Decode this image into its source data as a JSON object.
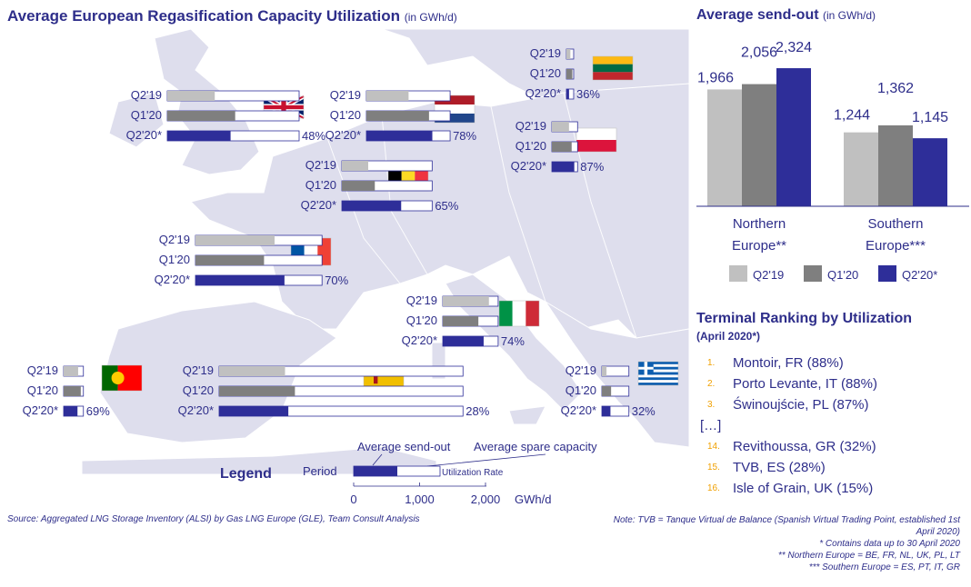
{
  "title": "Average European Regasification Capacity Utilization",
  "title_unit": "(in GWh/d)",
  "colors": {
    "q219": "#c0c0c0",
    "q120": "#7f7f7f",
    "q220": "#2e2e99",
    "map_land": "#dedeed",
    "map_water": "#ffffff",
    "text": "#2e2e8a"
  },
  "period_labels": [
    "Q2'19",
    "Q1'20",
    "Q2'20*"
  ],
  "countries": [
    {
      "name": "UK",
      "flag": "uk",
      "send": [
        720,
        1030,
        960
      ],
      "cap": 2000,
      "util_label": "48%"
    },
    {
      "name": "Netherlands",
      "flag": "nl",
      "send": [
        640,
        950,
        1000
      ],
      "cap": 1270,
      "util_label": "78%"
    },
    {
      "name": "Lithuania",
      "flag": "lt",
      "send": [
        60,
        90,
        40
      ],
      "cap": 110,
      "util_label": "36%"
    },
    {
      "name": "Poland",
      "flag": "pl",
      "send": [
        260,
        300,
        340
      ],
      "cap": 390,
      "util_label": "87%"
    },
    {
      "name": "Belgium",
      "flag": "be",
      "send": [
        400,
        500,
        900
      ],
      "cap": 1370,
      "util_label": "65%"
    },
    {
      "name": "France",
      "flag": "fr",
      "send": [
        1200,
        1040,
        1350
      ],
      "cap": 1920,
      "util_label": "70%"
    },
    {
      "name": "Italy",
      "flag": "it",
      "send": [
        700,
        540,
        620
      ],
      "cap": 840,
      "util_label": "74%"
    },
    {
      "name": "Portugal",
      "flag": "pt",
      "send": [
        220,
        260,
        210
      ],
      "cap": 300,
      "util_label": "69%"
    },
    {
      "name": "Spain",
      "flag": "es",
      "send": [
        1000,
        1150,
        1050
      ],
      "cap": 3700,
      "util_label": "28%"
    },
    {
      "name": "Greece",
      "flag": "gr",
      "send": [
        70,
        140,
        130
      ],
      "cap": 410,
      "util_label": "32%"
    }
  ],
  "legend": {
    "title": "Legend",
    "period": "Period",
    "send_out": "Average send-out",
    "spare": "Average spare capacity",
    "rate": "Utilization Rate",
    "axis_ticks": [
      "0",
      "1,000",
      "2,000"
    ],
    "axis_unit": "GWh/d"
  },
  "send_out_panel": {
    "title": "Average send-out",
    "unit": "(in GWh/d)"
  },
  "chart_data": {
    "type": "bar",
    "categories": [
      "Northern Europe**",
      "Southern Europe***"
    ],
    "category_lines": [
      [
        "Northern",
        "Europe**"
      ],
      [
        "Southern",
        "Europe***"
      ]
    ],
    "series": [
      {
        "name": "Q2'19",
        "values": [
          1966,
          1244
        ],
        "labels": [
          "1,966",
          "1,244"
        ]
      },
      {
        "name": "Q1'20",
        "values": [
          2056,
          1362
        ],
        "labels": [
          "2,056",
          "1,362"
        ]
      },
      {
        "name": "Q2'20*",
        "values": [
          2324,
          1145
        ],
        "labels": [
          "2,324",
          "1,145"
        ]
      }
    ]
  },
  "ranking": {
    "title": "Terminal Ranking by Utilization",
    "subtitle": "(April 2020*)",
    "items": [
      {
        "rank": "1.",
        "text": "Montoir, FR (88%)"
      },
      {
        "rank": "2.",
        "text": "Porto Levante, IT (88%)"
      },
      {
        "rank": "3.",
        "text": "Świnoujście, PL (87%)"
      },
      {
        "rank": "",
        "text": "[…]"
      },
      {
        "rank": "14.",
        "text": "Revithoussa, GR (32%)"
      },
      {
        "rank": "15.",
        "text": "TVB, ES (28%)"
      },
      {
        "rank": "16.",
        "text": "Isle of Grain, UK (15%)"
      }
    ]
  },
  "source": "Source: Aggregated LNG Storage Inventory (ALSI) by Gas LNG Europe (GLE), Team Consult Analysis",
  "notes": [
    "Note: TVB = Tanque Virtual de Balance (Spanish Virtual Trading Point, established 1st April 2020)",
    "* Contains data up to 30 April 2020",
    "** Northern Europe = BE, FR, NL, UK, PL, LT",
    "*** Southern Europe = ES, PT, IT, GR"
  ]
}
